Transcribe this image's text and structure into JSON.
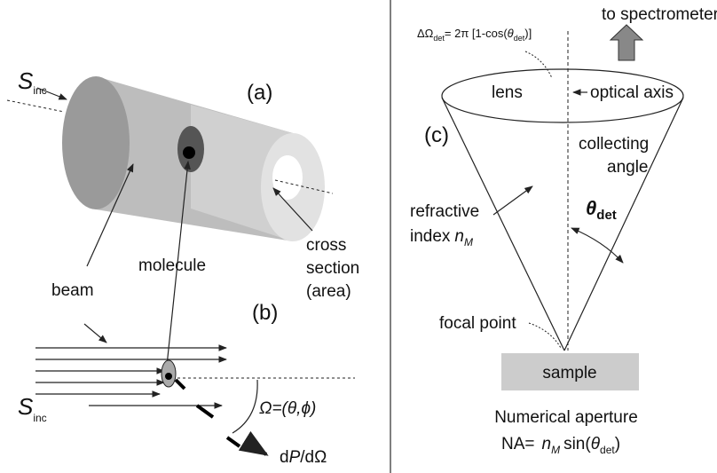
{
  "panel_a": {
    "label": "(a)",
    "incident": {
      "symbol": "S",
      "subscript": "inc"
    },
    "beam": "beam",
    "molecule": "molecule",
    "cross_section": [
      "cross",
      "section",
      "(area)"
    ]
  },
  "panel_b": {
    "label": "(b)",
    "incident": {
      "symbol": "S",
      "subscript": "inc"
    },
    "solid_angle": "Ω=(θ,ϕ)",
    "power": [
      "d",
      "P",
      "/dΩ"
    ]
  },
  "panel_c": {
    "label": "(c)",
    "solid_angle_formula": [
      "ΔΩ",
      "det",
      "= 2π [1-cos(",
      "θ",
      "det",
      ")]"
    ],
    "to_spectrometer": "to spectrometer",
    "lens": "lens",
    "optical_axis": "optical axis",
    "collecting_angle": [
      "collecting",
      "angle"
    ],
    "theta": {
      "symbol": "θ",
      "subscript": "det"
    },
    "refractive_index": [
      "refractive",
      "index",
      "n",
      "M"
    ],
    "focal_point": "focal point",
    "sample": "sample",
    "numerical_aperture": "Numerical aperture",
    "na_formula": [
      "NA=",
      "n",
      "M",
      "sin(",
      "θ",
      "det",
      ")"
    ]
  }
}
